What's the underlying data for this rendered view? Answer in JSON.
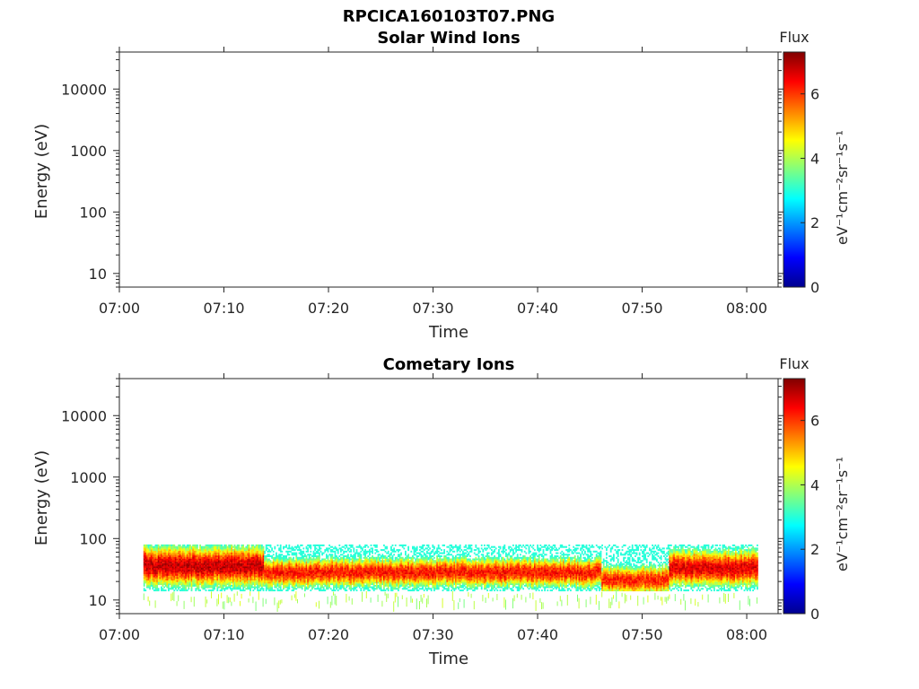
{
  "figure": {
    "title": "RPCICA160103T07.PNG"
  },
  "chart_data": [
    {
      "type": "heatmap",
      "title": "Solar Wind Ions",
      "xlabel": "Time",
      "ylabel": "Energy (eV)",
      "x_ticks": [
        "07:00",
        "07:10",
        "07:20",
        "07:30",
        "07:40",
        "07:50",
        "08:00"
      ],
      "x_range_minutes": [
        0,
        63
      ],
      "y_scale": "log",
      "y_range": [
        6,
        40000
      ],
      "y_ticks": [
        "10",
        "100",
        "1000",
        "10000"
      ],
      "colorbar": {
        "label": "Flux",
        "unit": "eV⁻¹cm⁻²sr⁻¹s⁻¹",
        "range": [
          0,
          7.3
        ],
        "ticks": [
          "0",
          "2",
          "4",
          "6"
        ],
        "colormap": "jet"
      },
      "data": "empty"
    },
    {
      "type": "heatmap",
      "title": "Cometary Ions",
      "xlabel": "Time",
      "ylabel": "Energy (eV)",
      "x_ticks": [
        "07:00",
        "07:10",
        "07:20",
        "07:30",
        "07:40",
        "07:50",
        "08:00"
      ],
      "x_range_minutes": [
        0,
        63
      ],
      "y_scale": "log",
      "y_range": [
        6,
        40000
      ],
      "y_ticks": [
        "10",
        "100",
        "1000",
        "10000"
      ],
      "colorbar": {
        "label": "Flux",
        "unit": "eV⁻¹cm⁻²sr⁻¹s⁻¹",
        "range": [
          0,
          7.3
        ],
        "ticks": [
          "0",
          "2",
          "4",
          "6"
        ],
        "colormap": "jet"
      },
      "data_extent": {
        "time_start": "07:02",
        "time_end": "08:01",
        "energy_min_ev": 14,
        "energy_max_ev": 80
      },
      "segments": [
        {
          "from_min": 2.3,
          "to_min": 13.8,
          "peak_ev_low": 20,
          "peak_ev_high": 65,
          "peak_flux": 6.8
        },
        {
          "from_min": 13.8,
          "to_min": 46.0,
          "peak_ev_low": 20,
          "peak_ev_high": 40,
          "peak_flux": 6.3
        },
        {
          "from_min": 46.0,
          "to_min": 52.5,
          "peak_ev_low": 15,
          "peak_ev_high": 30,
          "peak_flux": 6.2
        },
        {
          "from_min": 52.5,
          "to_min": 61.0,
          "peak_ev_low": 20,
          "peak_ev_high": 55,
          "peak_flux": 6.6
        }
      ]
    }
  ]
}
